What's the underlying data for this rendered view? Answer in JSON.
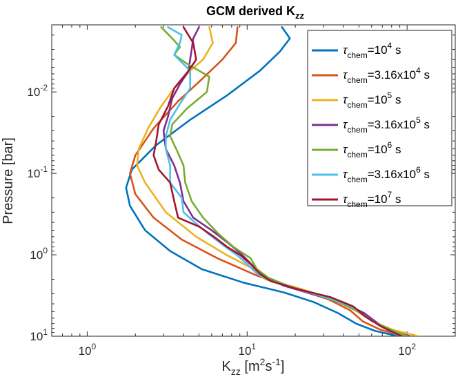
{
  "chart_data": {
    "type": "line",
    "title": "GCM derived K",
    "title_sub": "zz",
    "xlabel": {
      "main": "K",
      "sub": "zz",
      "unit_open": " [m",
      "unit_sup1": "2",
      "unit_mid": "s",
      "unit_sup2": "-1",
      "unit_close": "]"
    },
    "ylabel": "Pressure [bar]",
    "x_scale": "log",
    "y_scale": "log",
    "y_reversed": true,
    "xlim": [
      0.6,
      200
    ],
    "ylim": [
      0.0015,
      10
    ],
    "grid": false,
    "legend_position": "top-right",
    "x_ticks": [
      {
        "value": 1,
        "base": "10",
        "exp": "0"
      },
      {
        "value": 10,
        "base": "10",
        "exp": "1"
      },
      {
        "value": 100,
        "base": "10",
        "exp": "2"
      }
    ],
    "y_ticks": [
      {
        "value": 0.01,
        "base": "10",
        "exp": "-2"
      },
      {
        "value": 0.1,
        "base": "10",
        "exp": "-1"
      },
      {
        "value": 1,
        "base": "10",
        "exp": "0"
      },
      {
        "value": 10,
        "base": "10",
        "exp": "1"
      }
    ],
    "series": [
      {
        "color": "#0072BD",
        "legend": {
          "tau": "τ",
          "sub": "chem",
          "val": "=10",
          "sup": "4",
          "unit": " s"
        },
        "points": [
          [
            16.5,
            0.0016
          ],
          [
            18.5,
            0.0022
          ],
          [
            16,
            0.0032
          ],
          [
            12,
            0.0055
          ],
          [
            7.5,
            0.011
          ],
          [
            4.4,
            0.022
          ],
          [
            2.7,
            0.045
          ],
          [
            1.9,
            0.09
          ],
          [
            1.75,
            0.15
          ],
          [
            1.85,
            0.25
          ],
          [
            2.3,
            0.5
          ],
          [
            3.3,
            0.9
          ],
          [
            5.2,
            1.5
          ],
          [
            9.5,
            2.2
          ],
          [
            17,
            2.9
          ],
          [
            26,
            3.8
          ],
          [
            37,
            5.2
          ],
          [
            48,
            7
          ],
          [
            63,
            8.6
          ],
          [
            88,
            10
          ]
        ]
      },
      {
        "color": "#D95319",
        "legend": {
          "tau": "τ",
          "sub": "chem",
          "val": "=3.16x10",
          "sup": "4",
          "unit": " s"
        },
        "points": [
          [
            8.7,
            0.0016
          ],
          [
            8.5,
            0.0025
          ],
          [
            7,
            0.004
          ],
          [
            5.2,
            0.007
          ],
          [
            3.7,
            0.013
          ],
          [
            2.6,
            0.028
          ],
          [
            2.0,
            0.06
          ],
          [
            1.85,
            0.1
          ],
          [
            2.0,
            0.18
          ],
          [
            2.6,
            0.35
          ],
          [
            3.9,
            0.65
          ],
          [
            6.5,
            1.1
          ],
          [
            11.5,
            1.8
          ],
          [
            20,
            2.6
          ],
          [
            32,
            3.5
          ],
          [
            44,
            4.8
          ],
          [
            53,
            6.6
          ],
          [
            68,
            8.3
          ],
          [
            95,
            10
          ]
        ]
      },
      {
        "color": "#EDB120",
        "legend": {
          "tau": "τ",
          "sub": "chem",
          "val": "=10",
          "sup": "5",
          "unit": " s"
        },
        "points": [
          [
            5.8,
            0.0016
          ],
          [
            6.1,
            0.0025
          ],
          [
            5.3,
            0.004
          ],
          [
            4.4,
            0.0055
          ],
          [
            3.5,
            0.009
          ],
          [
            2.9,
            0.015
          ],
          [
            2.4,
            0.028
          ],
          [
            2.1,
            0.05
          ],
          [
            2.05,
            0.08
          ],
          [
            2.3,
            0.13
          ],
          [
            3.1,
            0.3
          ],
          [
            4.8,
            0.6
          ],
          [
            7.4,
            1.0
          ],
          [
            11,
            1.5
          ],
          [
            13,
            2.0
          ],
          [
            20,
            2.5
          ],
          [
            36,
            3.6
          ],
          [
            49,
            5.0
          ],
          [
            61,
            6.6
          ],
          [
            82,
            8.4
          ],
          [
            118,
            10
          ]
        ]
      },
      {
        "color": "#7E2F8E",
        "legend": {
          "tau": "τ",
          "sub": "chem",
          "val": "=3.16x10",
          "sup": "5",
          "unit": " s"
        },
        "points": [
          [
            5.0,
            0.0016
          ],
          [
            4.6,
            0.0022
          ],
          [
            4.5,
            0.003
          ],
          [
            4.4,
            0.004
          ],
          [
            4.3,
            0.0055
          ],
          [
            3.8,
            0.008
          ],
          [
            3.4,
            0.012
          ],
          [
            3.2,
            0.02
          ],
          [
            3.0,
            0.03
          ],
          [
            3.1,
            0.05
          ],
          [
            3.5,
            0.08
          ],
          [
            3.8,
            0.13
          ],
          [
            4.0,
            0.22
          ],
          [
            4.6,
            0.35
          ],
          [
            6.0,
            0.5
          ],
          [
            7.5,
            0.7
          ],
          [
            9.3,
            1.0
          ],
          [
            11,
            1.4
          ],
          [
            13,
            1.9
          ],
          [
            17,
            2.4
          ],
          [
            25,
            3.0
          ],
          [
            40,
            3.9
          ],
          [
            54,
            5.2
          ],
          [
            66,
            7
          ],
          [
            78,
            8.5
          ],
          [
            104,
            10
          ]
        ]
      },
      {
        "color": "#77AC30",
        "legend": {
          "tau": "τ",
          "sub": "chem",
          "val": "=10",
          "sup": "6",
          "unit": " s"
        },
        "points": [
          [
            2.9,
            0.0016
          ],
          [
            3.4,
            0.0022
          ],
          [
            3.8,
            0.0028
          ],
          [
            3.5,
            0.0035
          ],
          [
            4.2,
            0.0045
          ],
          [
            5.8,
            0.0065
          ],
          [
            5.6,
            0.01
          ],
          [
            4.2,
            0.016
          ],
          [
            3.4,
            0.025
          ],
          [
            3.3,
            0.035
          ],
          [
            3.6,
            0.05
          ],
          [
            4.0,
            0.08
          ],
          [
            4.1,
            0.13
          ],
          [
            4.5,
            0.22
          ],
          [
            5.3,
            0.35
          ],
          [
            6.6,
            0.55
          ],
          [
            8.2,
            0.8
          ],
          [
            10.5,
            1.1
          ],
          [
            11.5,
            1.5
          ],
          [
            13.5,
            1.9
          ],
          [
            18,
            2.4
          ],
          [
            26,
            3.0
          ],
          [
            37,
            3.8
          ],
          [
            50,
            5.0
          ],
          [
            60,
            6.5
          ],
          [
            80,
            8.4
          ],
          [
            100,
            10
          ]
        ]
      },
      {
        "color": "#4DBEEE",
        "legend": {
          "tau": "τ",
          "sub": "chem",
          "val": "=3.16x10",
          "sup": "6",
          "unit": " s"
        },
        "points": [
          [
            3.2,
            0.0016
          ],
          [
            3.9,
            0.002
          ],
          [
            3.8,
            0.0025
          ],
          [
            3.5,
            0.0035
          ],
          [
            4.4,
            0.0055
          ],
          [
            4.4,
            0.009
          ],
          [
            3.8,
            0.014
          ],
          [
            3.3,
            0.022
          ],
          [
            3.1,
            0.035
          ],
          [
            3.1,
            0.05
          ],
          [
            3.3,
            0.08
          ],
          [
            3.3,
            0.13
          ],
          [
            3.9,
            0.2
          ],
          [
            4.0,
            0.3
          ],
          [
            4.7,
            0.4
          ],
          [
            5.7,
            0.55
          ],
          [
            7.0,
            0.75
          ],
          [
            8.6,
            1.0
          ],
          [
            10,
            1.3
          ],
          [
            11.5,
            1.7
          ],
          [
            14,
            2.1
          ],
          [
            20,
            2.6
          ],
          [
            31,
            3.3
          ],
          [
            45,
            4.3
          ],
          [
            56,
            5.8
          ],
          [
            68,
            7.5
          ],
          [
            90,
            10
          ]
        ]
      },
      {
        "color": "#A2142F",
        "legend": {
          "tau": "τ",
          "sub": "chem",
          "val": "=10",
          "sup": "7",
          "unit": " s"
        },
        "points": [
          [
            4.0,
            0.0016
          ],
          [
            4.6,
            0.0025
          ],
          [
            4.8,
            0.004
          ],
          [
            4.3,
            0.0055
          ],
          [
            3.5,
            0.009
          ],
          [
            3.2,
            0.015
          ],
          [
            2.8,
            0.025
          ],
          [
            2.7,
            0.04
          ],
          [
            2.6,
            0.06
          ],
          [
            2.8,
            0.09
          ],
          [
            3.3,
            0.13
          ],
          [
            3.5,
            0.22
          ],
          [
            3.7,
            0.35
          ],
          [
            5.0,
            0.45
          ],
          [
            6.2,
            0.6
          ],
          [
            7.5,
            0.8
          ],
          [
            9.0,
            1.0
          ],
          [
            10.5,
            1.3
          ],
          [
            12,
            1.7
          ],
          [
            14,
            2.1
          ],
          [
            20,
            2.6
          ],
          [
            33,
            3.3
          ],
          [
            46,
            4.3
          ],
          [
            54,
            5.6
          ],
          [
            68,
            7.5
          ],
          [
            92,
            10
          ]
        ]
      }
    ]
  }
}
